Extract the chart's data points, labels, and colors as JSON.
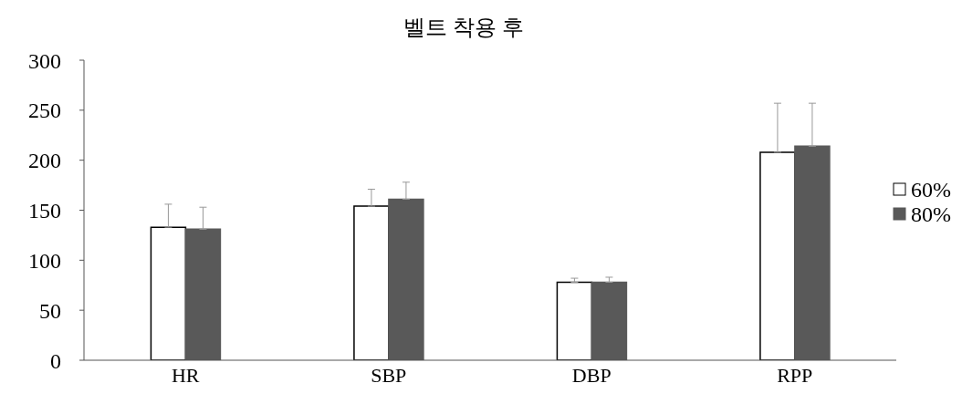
{
  "chart_data": {
    "type": "bar",
    "title": "벨트 착용 후",
    "categories": [
      "HR",
      "SBP",
      "DBP",
      "RPP"
    ],
    "series": [
      {
        "name": "60%",
        "color": "#ffffff",
        "values": [
          133,
          154,
          78,
          208
        ],
        "errors": [
          [
            133,
            156
          ],
          [
            154,
            171
          ],
          [
            78,
            82
          ],
          [
            208,
            257
          ]
        ]
      },
      {
        "name": "80%",
        "color": "#595959",
        "values": [
          131,
          161,
          78,
          214
        ],
        "errors": [
          [
            131,
            153
          ],
          [
            161,
            178
          ],
          [
            78,
            83
          ],
          [
            214,
            257
          ]
        ]
      }
    ],
    "ylim": [
      0,
      300
    ],
    "yticks": [
      0,
      50,
      100,
      150,
      200,
      250,
      300
    ],
    "grid": false,
    "legend": "right"
  }
}
